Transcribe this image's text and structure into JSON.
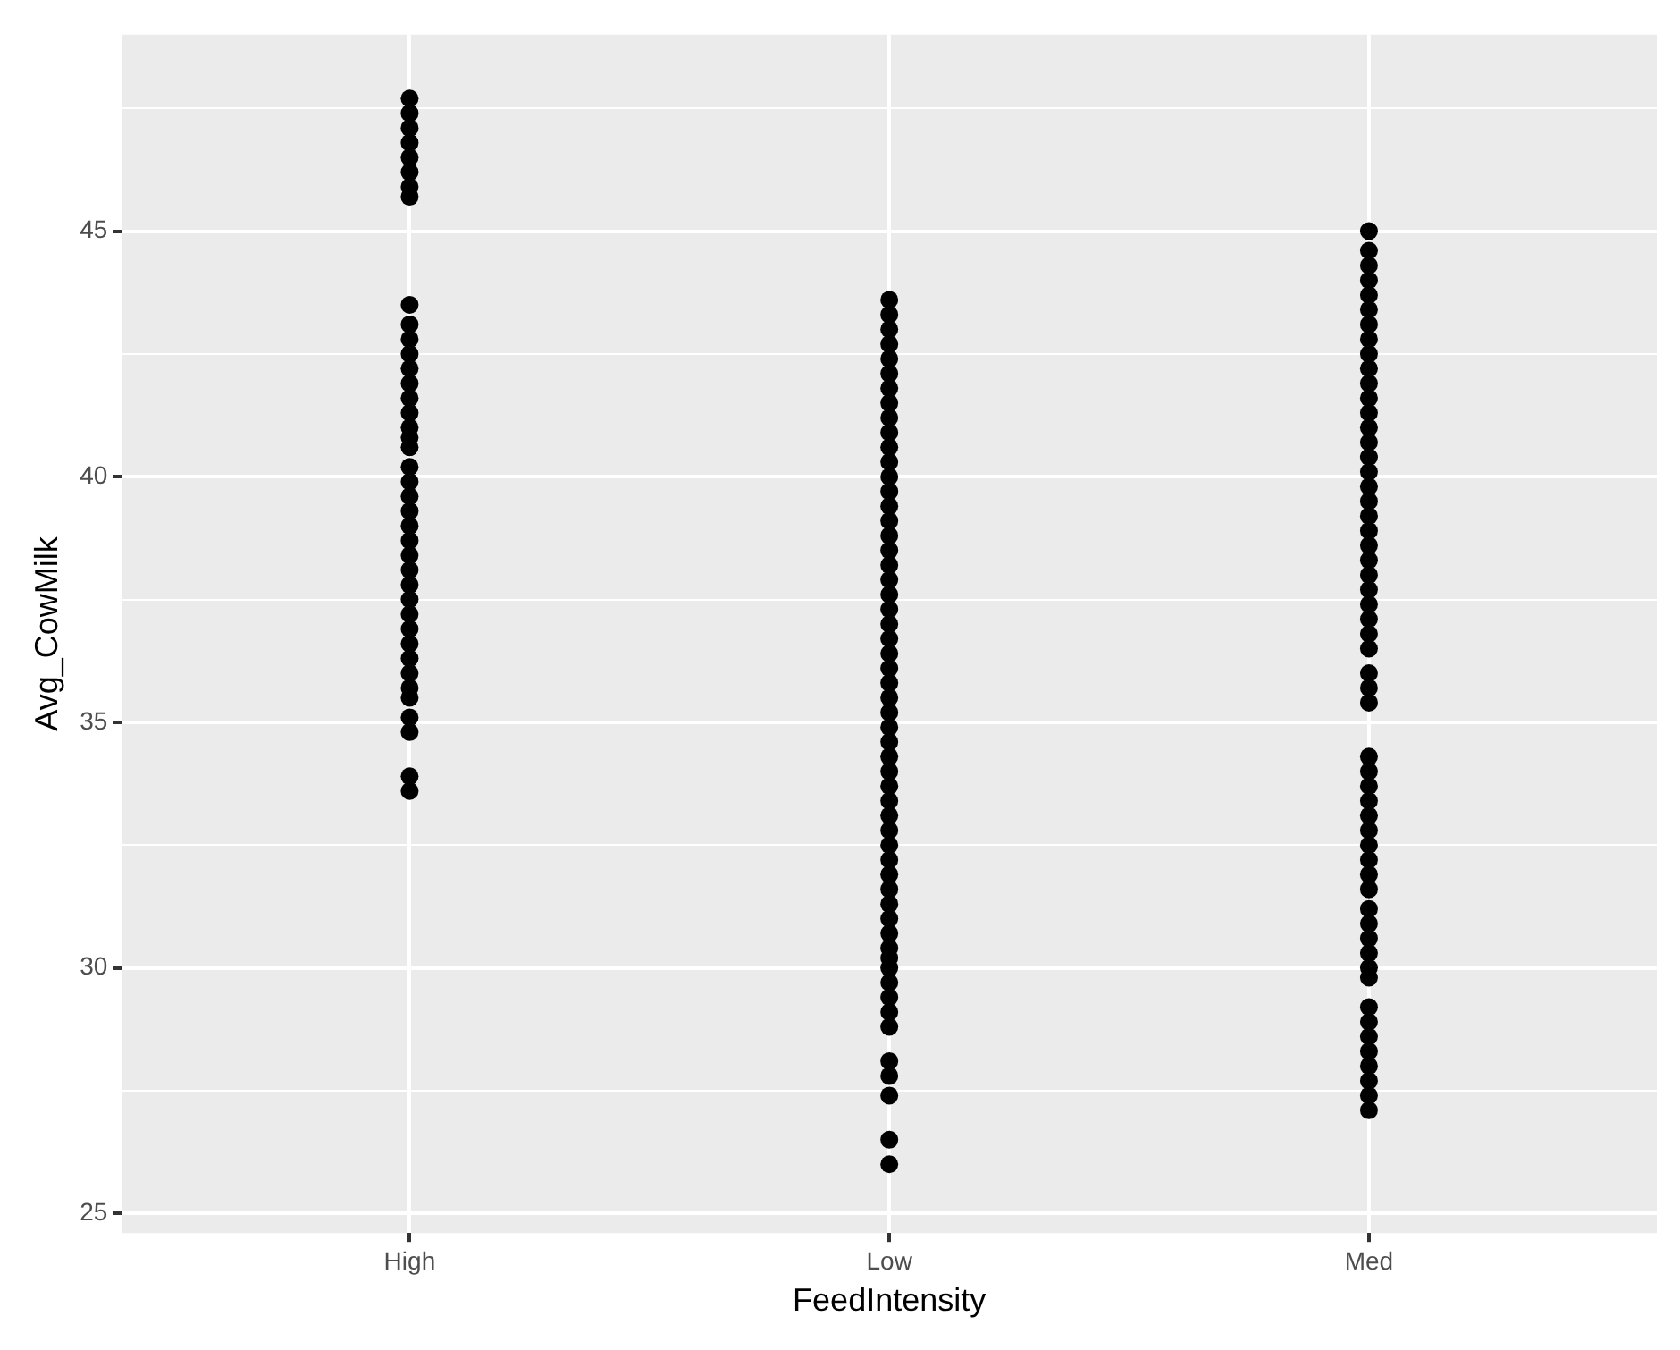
{
  "chart_data": {
    "type": "scatter",
    "xlabel": "FeedIntensity",
    "ylabel": "Avg_CowMilk",
    "categories": [
      "High",
      "Low",
      "Med"
    ],
    "series": [
      {
        "color": "#000000",
        "x": [
          "High",
          "High",
          "High",
          "High",
          "High",
          "High",
          "High",
          "High",
          "High",
          "High",
          "High",
          "High",
          "High",
          "High",
          "High",
          "High",
          "High",
          "High",
          "High",
          "High",
          "High",
          "High",
          "High",
          "High",
          "High",
          "High",
          "High",
          "High",
          "High",
          "High",
          "High",
          "High",
          "High",
          "High",
          "High",
          "High",
          "High",
          "High",
          "High",
          "High"
        ],
        "values": [
          47.7,
          47.4,
          47.1,
          46.8,
          46.5,
          46.2,
          45.9,
          45.7,
          43.5,
          43.1,
          42.8,
          42.5,
          42.2,
          41.9,
          41.6,
          41.3,
          41.0,
          40.8,
          40.6,
          40.2,
          39.9,
          39.6,
          39.3,
          39.0,
          38.7,
          38.4,
          38.1,
          37.8,
          37.5,
          37.2,
          36.9,
          36.6,
          36.3,
          36.0,
          35.7,
          35.5,
          35.1,
          34.8,
          33.9,
          33.6
        ]
      },
      {
        "color": "#000000",
        "x": [
          "Low",
          "Low",
          "Low",
          "Low",
          "Low",
          "Low",
          "Low",
          "Low",
          "Low",
          "Low",
          "Low",
          "Low",
          "Low",
          "Low",
          "Low",
          "Low",
          "Low",
          "Low",
          "Low",
          "Low",
          "Low",
          "Low",
          "Low",
          "Low",
          "Low",
          "Low",
          "Low",
          "Low",
          "Low",
          "Low",
          "Low",
          "Low",
          "Low",
          "Low",
          "Low",
          "Low",
          "Low",
          "Low",
          "Low",
          "Low",
          "Low",
          "Low",
          "Low",
          "Low",
          "Low",
          "Low",
          "Low",
          "Low",
          "Low",
          "Low",
          "Low",
          "Low",
          "Low",
          "Low",
          "Low",
          "Low"
        ],
        "values": [
          43.6,
          43.3,
          43.0,
          42.7,
          42.4,
          42.1,
          41.8,
          41.5,
          41.2,
          40.9,
          40.6,
          40.3,
          40.0,
          39.7,
          39.4,
          39.1,
          38.8,
          38.5,
          38.2,
          37.9,
          37.6,
          37.3,
          37.0,
          36.7,
          36.4,
          36.1,
          35.8,
          35.5,
          35.2,
          34.9,
          34.6,
          34.3,
          34.0,
          33.7,
          33.4,
          33.1,
          32.8,
          32.5,
          32.2,
          31.9,
          31.6,
          31.3,
          31.0,
          30.7,
          30.4,
          30.2,
          30.0,
          29.7,
          29.4,
          29.1,
          28.8,
          28.1,
          27.8,
          27.4,
          26.5,
          26.0
        ]
      },
      {
        "color": "#000000",
        "x": [
          "Med",
          "Med",
          "Med",
          "Med",
          "Med",
          "Med",
          "Med",
          "Med",
          "Med",
          "Med",
          "Med",
          "Med",
          "Med",
          "Med",
          "Med",
          "Med",
          "Med",
          "Med",
          "Med",
          "Med",
          "Med",
          "Med",
          "Med",
          "Med",
          "Med",
          "Med",
          "Med",
          "Med",
          "Med",
          "Med",
          "Med",
          "Med",
          "Med",
          "Med",
          "Med",
          "Med",
          "Med",
          "Med",
          "Med",
          "Med",
          "Med",
          "Med",
          "Med",
          "Med",
          "Med",
          "Med",
          "Med",
          "Med",
          "Med",
          "Med",
          "Med",
          "Med",
          "Med",
          "Med",
          "Med",
          "Med"
        ],
        "values": [
          45.0,
          44.6,
          44.3,
          44.0,
          43.7,
          43.4,
          43.1,
          42.8,
          42.5,
          42.2,
          41.9,
          41.6,
          41.3,
          41.0,
          40.7,
          40.4,
          40.1,
          39.8,
          39.5,
          39.2,
          38.9,
          38.6,
          38.3,
          38.0,
          37.7,
          37.4,
          37.1,
          36.8,
          36.5,
          36.0,
          35.7,
          35.4,
          34.3,
          34.0,
          33.7,
          33.4,
          33.1,
          32.8,
          32.5,
          32.2,
          31.9,
          31.6,
          31.2,
          30.9,
          30.6,
          30.3,
          30.0,
          29.8,
          29.2,
          28.9,
          28.6,
          28.3,
          28.0,
          27.7,
          27.4,
          27.1
        ]
      }
    ],
    "ylim": [
      24.6,
      49.0
    ],
    "yticks": [
      25,
      {
        "value": 27.5,
        "label": null
      },
      30,
      {
        "value": 32.5,
        "label": null
      },
      35,
      {
        "value": 37.5,
        "label": null
      },
      40,
      {
        "value": 42.5,
        "label": null
      },
      45,
      {
        "value": 47.5,
        "label": null
      }
    ],
    "grid": true,
    "legend": false,
    "marker": "circle"
  }
}
